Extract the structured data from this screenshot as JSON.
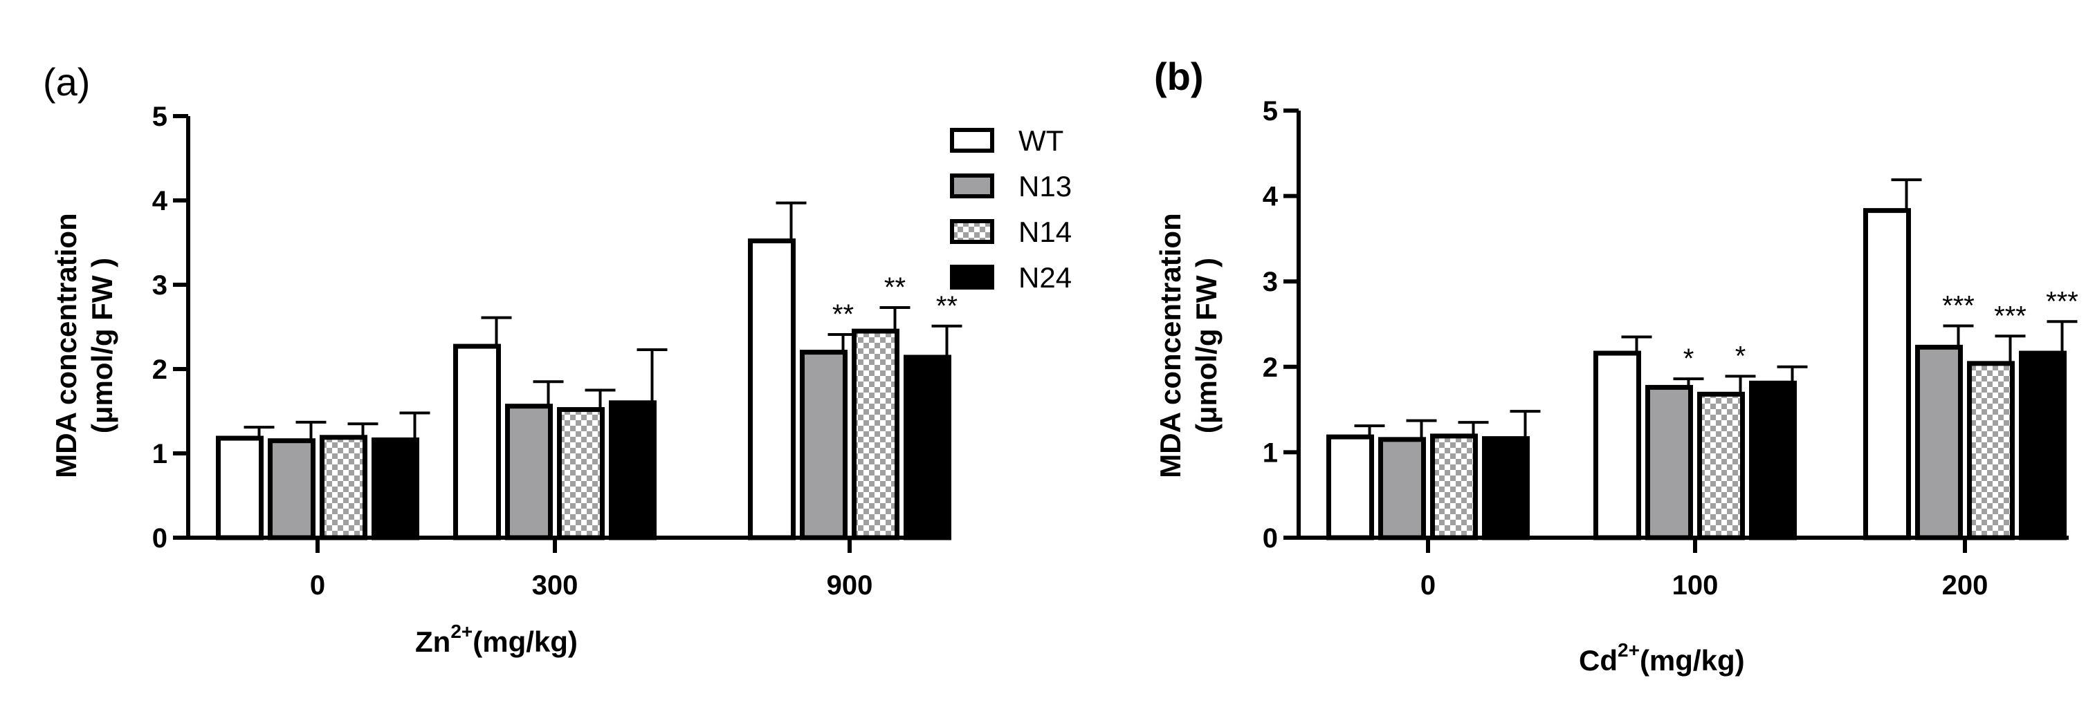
{
  "chart_data": [
    {
      "type": "bar",
      "panel": "(a)",
      "xlabel": "Zn",
      "xlabel_sup": "2+",
      "xlabel_unit": "(mg/kg)",
      "ylabel_line1": "MDA concentration",
      "ylabel_line2": "(μmol/g FW )",
      "ylim": [
        0,
        5
      ],
      "yticks": [
        "0",
        "1",
        "2",
        "3",
        "4",
        "5"
      ],
      "categories": [
        "0",
        "300",
        "900"
      ],
      "series": [
        {
          "name": "WT",
          "fill": "white",
          "values": [
            1.18,
            2.27,
            3.52
          ],
          "errors": [
            0.13,
            0.34,
            0.45
          ]
        },
        {
          "name": "N13",
          "fill": "gray",
          "values": [
            1.15,
            1.56,
            2.2
          ],
          "errors": [
            0.22,
            0.29,
            0.21
          ]
        },
        {
          "name": "N14",
          "fill": "checker",
          "values": [
            1.19,
            1.52,
            2.45
          ],
          "errors": [
            0.16,
            0.23,
            0.28
          ]
        },
        {
          "name": "N24",
          "fill": "black",
          "values": [
            1.16,
            1.6,
            2.14
          ],
          "errors": [
            0.32,
            0.63,
            0.37
          ]
        }
      ],
      "significance": [
        [
          "",
          "",
          ""
        ],
        [
          "",
          "",
          "**"
        ],
        [
          "",
          "",
          "**"
        ],
        [
          "",
          "",
          "**"
        ]
      ],
      "legend": {
        "position": "top-right",
        "entries": [
          "WT",
          "N13",
          "N14",
          "N24"
        ]
      }
    },
    {
      "type": "bar",
      "panel": "(b)",
      "xlabel": "Cd",
      "xlabel_sup": "2+",
      "xlabel_unit": "(mg/kg)",
      "ylabel_line1": "MDA concentration",
      "ylabel_line2": "(μmol/g FW )",
      "ylim": [
        0,
        5
      ],
      "yticks": [
        "0",
        "1",
        "2",
        "3",
        "4",
        "5"
      ],
      "categories": [
        "0",
        "100",
        "200"
      ],
      "series": [
        {
          "name": "WT",
          "fill": "white",
          "values": [
            1.18,
            2.16,
            3.83
          ],
          "errors": [
            0.13,
            0.19,
            0.36
          ]
        },
        {
          "name": "N13",
          "fill": "gray",
          "values": [
            1.15,
            1.76,
            2.23
          ],
          "errors": [
            0.22,
            0.1,
            0.25
          ]
        },
        {
          "name": "N14",
          "fill": "checker",
          "values": [
            1.19,
            1.68,
            2.04
          ],
          "errors": [
            0.16,
            0.21,
            0.32
          ]
        },
        {
          "name": "N24",
          "fill": "black",
          "values": [
            1.16,
            1.81,
            2.16
          ],
          "errors": [
            0.32,
            0.19,
            0.37
          ]
        }
      ],
      "significance": [
        [
          "",
          "",
          ""
        ],
        [
          "",
          "*",
          "***"
        ],
        [
          "",
          "*",
          "***"
        ],
        [
          "",
          "",
          "***"
        ]
      ]
    }
  ]
}
